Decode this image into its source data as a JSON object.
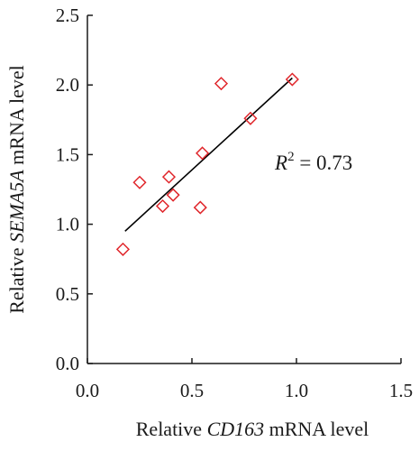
{
  "chart_data": {
    "type": "scatter",
    "xlabel": {
      "prefix": "Relative ",
      "gene": "CD163",
      "suffix": " mRNA level"
    },
    "ylabel": {
      "prefix": "Relative ",
      "gene": "SEMA5A",
      "suffix": " mRNA level"
    },
    "xlim": [
      0.0,
      1.5
    ],
    "ylim": [
      0.0,
      2.5
    ],
    "x_ticks": [
      "0.0",
      "0.5",
      "1.0",
      "1.5"
    ],
    "y_ticks": [
      "0.0",
      "0.5",
      "1.0",
      "1.5",
      "2.0",
      "2.5"
    ],
    "points": [
      {
        "x": 0.17,
        "y": 0.82
      },
      {
        "x": 0.25,
        "y": 1.3
      },
      {
        "x": 0.36,
        "y": 1.13
      },
      {
        "x": 0.39,
        "y": 1.34
      },
      {
        "x": 0.41,
        "y": 1.21
      },
      {
        "x": 0.54,
        "y": 1.12
      },
      {
        "x": 0.55,
        "y": 1.51
      },
      {
        "x": 0.64,
        "y": 2.01
      },
      {
        "x": 0.78,
        "y": 1.76
      },
      {
        "x": 0.98,
        "y": 2.04
      }
    ],
    "trendline": {
      "x": [
        0.18,
        0.98
      ],
      "y": [
        0.95,
        2.05
      ]
    },
    "annotation": {
      "label": "R",
      "sup": "2",
      "text": " = 0.73"
    },
    "marker_color": "#e0262b",
    "grid": false,
    "legend": "none"
  }
}
